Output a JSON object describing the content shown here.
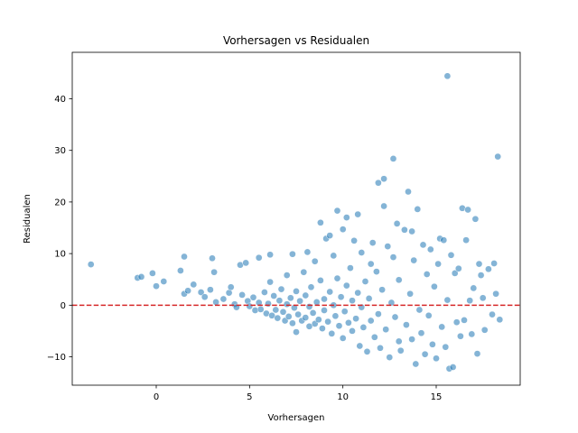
{
  "chart_data": {
    "type": "scatter",
    "title": "Vorhersagen vs Residualen",
    "xlabel": "Vorhersagen",
    "ylabel": "Residualen",
    "xlim": [
      -4.5,
      19.5
    ],
    "ylim": [
      -15.5,
      49
    ],
    "xticks": [
      0,
      5,
      10,
      15
    ],
    "yticks": [
      -10,
      0,
      10,
      20,
      30,
      40
    ],
    "grid": false,
    "legend": "none",
    "point_color": "#1f77b4",
    "point_alpha": 0.55,
    "reference_line": {
      "y": 0,
      "color": "#d62728",
      "style": "dashed"
    },
    "points": [
      [
        -3.5,
        7.9
      ],
      [
        -1.0,
        5.3
      ],
      [
        -0.8,
        5.5
      ],
      [
        -0.2,
        6.2
      ],
      [
        0.0,
        3.7
      ],
      [
        0.4,
        4.6
      ],
      [
        1.3,
        6.7
      ],
      [
        1.5,
        9.4
      ],
      [
        1.5,
        2.2
      ],
      [
        1.7,
        2.8
      ],
      [
        2.0,
        4.0
      ],
      [
        2.4,
        2.5
      ],
      [
        2.6,
        1.6
      ],
      [
        2.9,
        3.0
      ],
      [
        3.0,
        9.1
      ],
      [
        3.1,
        6.4
      ],
      [
        3.2,
        0.6
      ],
      [
        3.6,
        1.2
      ],
      [
        3.9,
        2.4
      ],
      [
        4.0,
        3.5
      ],
      [
        4.2,
        0.2
      ],
      [
        4.3,
        -0.4
      ],
      [
        4.5,
        7.8
      ],
      [
        4.6,
        2.0
      ],
      [
        4.8,
        8.2
      ],
      [
        4.9,
        0.8
      ],
      [
        5.0,
        -0.2
      ],
      [
        5.2,
        1.5
      ],
      [
        5.3,
        -1.0
      ],
      [
        5.5,
        9.2
      ],
      [
        5.5,
        0.5
      ],
      [
        5.6,
        -0.8
      ],
      [
        5.8,
        2.5
      ],
      [
        5.9,
        -1.6
      ],
      [
        6.0,
        0.3
      ],
      [
        6.1,
        9.8
      ],
      [
        6.1,
        4.5
      ],
      [
        6.2,
        -2.0
      ],
      [
        6.3,
        1.8
      ],
      [
        6.4,
        -0.9
      ],
      [
        6.5,
        -2.5
      ],
      [
        6.6,
        0.9
      ],
      [
        6.7,
        3.1
      ],
      [
        6.8,
        -1.3
      ],
      [
        6.9,
        -3.0
      ],
      [
        7.0,
        0.2
      ],
      [
        7.0,
        5.8
      ],
      [
        7.1,
        -2.2
      ],
      [
        7.2,
        1.4
      ],
      [
        7.3,
        -3.5
      ],
      [
        7.3,
        9.9
      ],
      [
        7.4,
        -0.5
      ],
      [
        7.5,
        2.7
      ],
      [
        7.5,
        -5.2
      ],
      [
        7.6,
        -1.8
      ],
      [
        7.7,
        0.8
      ],
      [
        7.8,
        -3.0
      ],
      [
        7.9,
        6.4
      ],
      [
        8.0,
        -2.4
      ],
      [
        8.0,
        1.9
      ],
      [
        8.1,
        10.3
      ],
      [
        8.2,
        -4.1
      ],
      [
        8.2,
        -0.3
      ],
      [
        8.3,
        3.5
      ],
      [
        8.4,
        -1.5
      ],
      [
        8.5,
        -3.6
      ],
      [
        8.5,
        8.5
      ],
      [
        8.6,
        0.6
      ],
      [
        8.7,
        -2.8
      ],
      [
        8.8,
        4.8
      ],
      [
        8.8,
        16.0
      ],
      [
        8.9,
        -4.5
      ],
      [
        9.0,
        1.2
      ],
      [
        9.0,
        -1.0
      ],
      [
        9.1,
        12.9
      ],
      [
        9.2,
        -3.2
      ],
      [
        9.3,
        2.6
      ],
      [
        9.3,
        13.5
      ],
      [
        9.4,
        -5.5
      ],
      [
        9.5,
        0.0
      ],
      [
        9.5,
        9.6
      ],
      [
        9.6,
        -2.1
      ],
      [
        9.7,
        18.3
      ],
      [
        9.7,
        5.2
      ],
      [
        9.8,
        -4.0
      ],
      [
        9.9,
        1.6
      ],
      [
        10.0,
        -6.4
      ],
      [
        10.0,
        14.7
      ],
      [
        10.1,
        -1.2
      ],
      [
        10.2,
        3.8
      ],
      [
        10.2,
        17.0
      ],
      [
        10.3,
        -3.4
      ],
      [
        10.4,
        7.2
      ],
      [
        10.5,
        -5.0
      ],
      [
        10.5,
        0.9
      ],
      [
        10.6,
        12.5
      ],
      [
        10.7,
        -2.6
      ],
      [
        10.8,
        17.6
      ],
      [
        10.8,
        2.4
      ],
      [
        10.9,
        -7.9
      ],
      [
        11.0,
        -0.4
      ],
      [
        11.0,
        10.2
      ],
      [
        11.1,
        -4.3
      ],
      [
        11.2,
        4.6
      ],
      [
        11.3,
        -9.0
      ],
      [
        11.4,
        1.3
      ],
      [
        11.5,
        8.0
      ],
      [
        11.5,
        -3.0
      ],
      [
        11.6,
        12.1
      ],
      [
        11.7,
        -6.2
      ],
      [
        11.8,
        6.5
      ],
      [
        11.9,
        -1.7
      ],
      [
        11.9,
        23.7
      ],
      [
        12.0,
        -8.3
      ],
      [
        12.1,
        3.0
      ],
      [
        12.2,
        19.2
      ],
      [
        12.2,
        24.5
      ],
      [
        12.3,
        -4.7
      ],
      [
        12.4,
        11.4
      ],
      [
        12.5,
        -10.1
      ],
      [
        12.6,
        0.5
      ],
      [
        12.7,
        9.3
      ],
      [
        12.7,
        28.4
      ],
      [
        12.8,
        -2.3
      ],
      [
        12.9,
        15.8
      ],
      [
        13.0,
        -7.0
      ],
      [
        13.0,
        4.9
      ],
      [
        13.1,
        -8.8
      ],
      [
        13.3,
        14.6
      ],
      [
        13.4,
        -3.8
      ],
      [
        13.5,
        22.0
      ],
      [
        13.6,
        2.2
      ],
      [
        13.7,
        -6.6
      ],
      [
        13.7,
        14.3
      ],
      [
        13.8,
        8.7
      ],
      [
        13.9,
        -11.4
      ],
      [
        14.0,
        18.6
      ],
      [
        14.1,
        -0.9
      ],
      [
        14.2,
        -5.4
      ],
      [
        14.3,
        11.7
      ],
      [
        14.4,
        -9.5
      ],
      [
        14.5,
        6.0
      ],
      [
        14.6,
        -2.0
      ],
      [
        14.7,
        10.8
      ],
      [
        14.8,
        -7.6
      ],
      [
        14.9,
        3.6
      ],
      [
        15.0,
        -10.3
      ],
      [
        15.1,
        8.0
      ],
      [
        15.2,
        12.9
      ],
      [
        15.3,
        -4.2
      ],
      [
        15.4,
        12.6
      ],
      [
        15.5,
        -8.1
      ],
      [
        15.6,
        1.0
      ],
      [
        15.6,
        44.4
      ],
      [
        15.7,
        -12.3
      ],
      [
        15.8,
        9.7
      ],
      [
        15.9,
        -12.0
      ],
      [
        16.0,
        6.2
      ],
      [
        16.1,
        -3.3
      ],
      [
        16.2,
        7.1
      ],
      [
        16.3,
        -6.0
      ],
      [
        16.4,
        18.8
      ],
      [
        16.5,
        -2.9
      ],
      [
        16.6,
        12.6
      ],
      [
        16.7,
        18.5
      ],
      [
        16.8,
        0.9
      ],
      [
        16.9,
        -5.6
      ],
      [
        17.0,
        3.3
      ],
      [
        17.1,
        16.7
      ],
      [
        17.2,
        -9.4
      ],
      [
        17.3,
        8.0
      ],
      [
        17.4,
        5.8
      ],
      [
        17.5,
        1.4
      ],
      [
        17.6,
        -4.8
      ],
      [
        18.0,
        -1.8
      ],
      [
        18.1,
        8.1
      ],
      [
        18.2,
        2.2
      ],
      [
        18.3,
        28.8
      ],
      [
        18.4,
        -2.8
      ],
      [
        17.8,
        7.0
      ]
    ]
  }
}
